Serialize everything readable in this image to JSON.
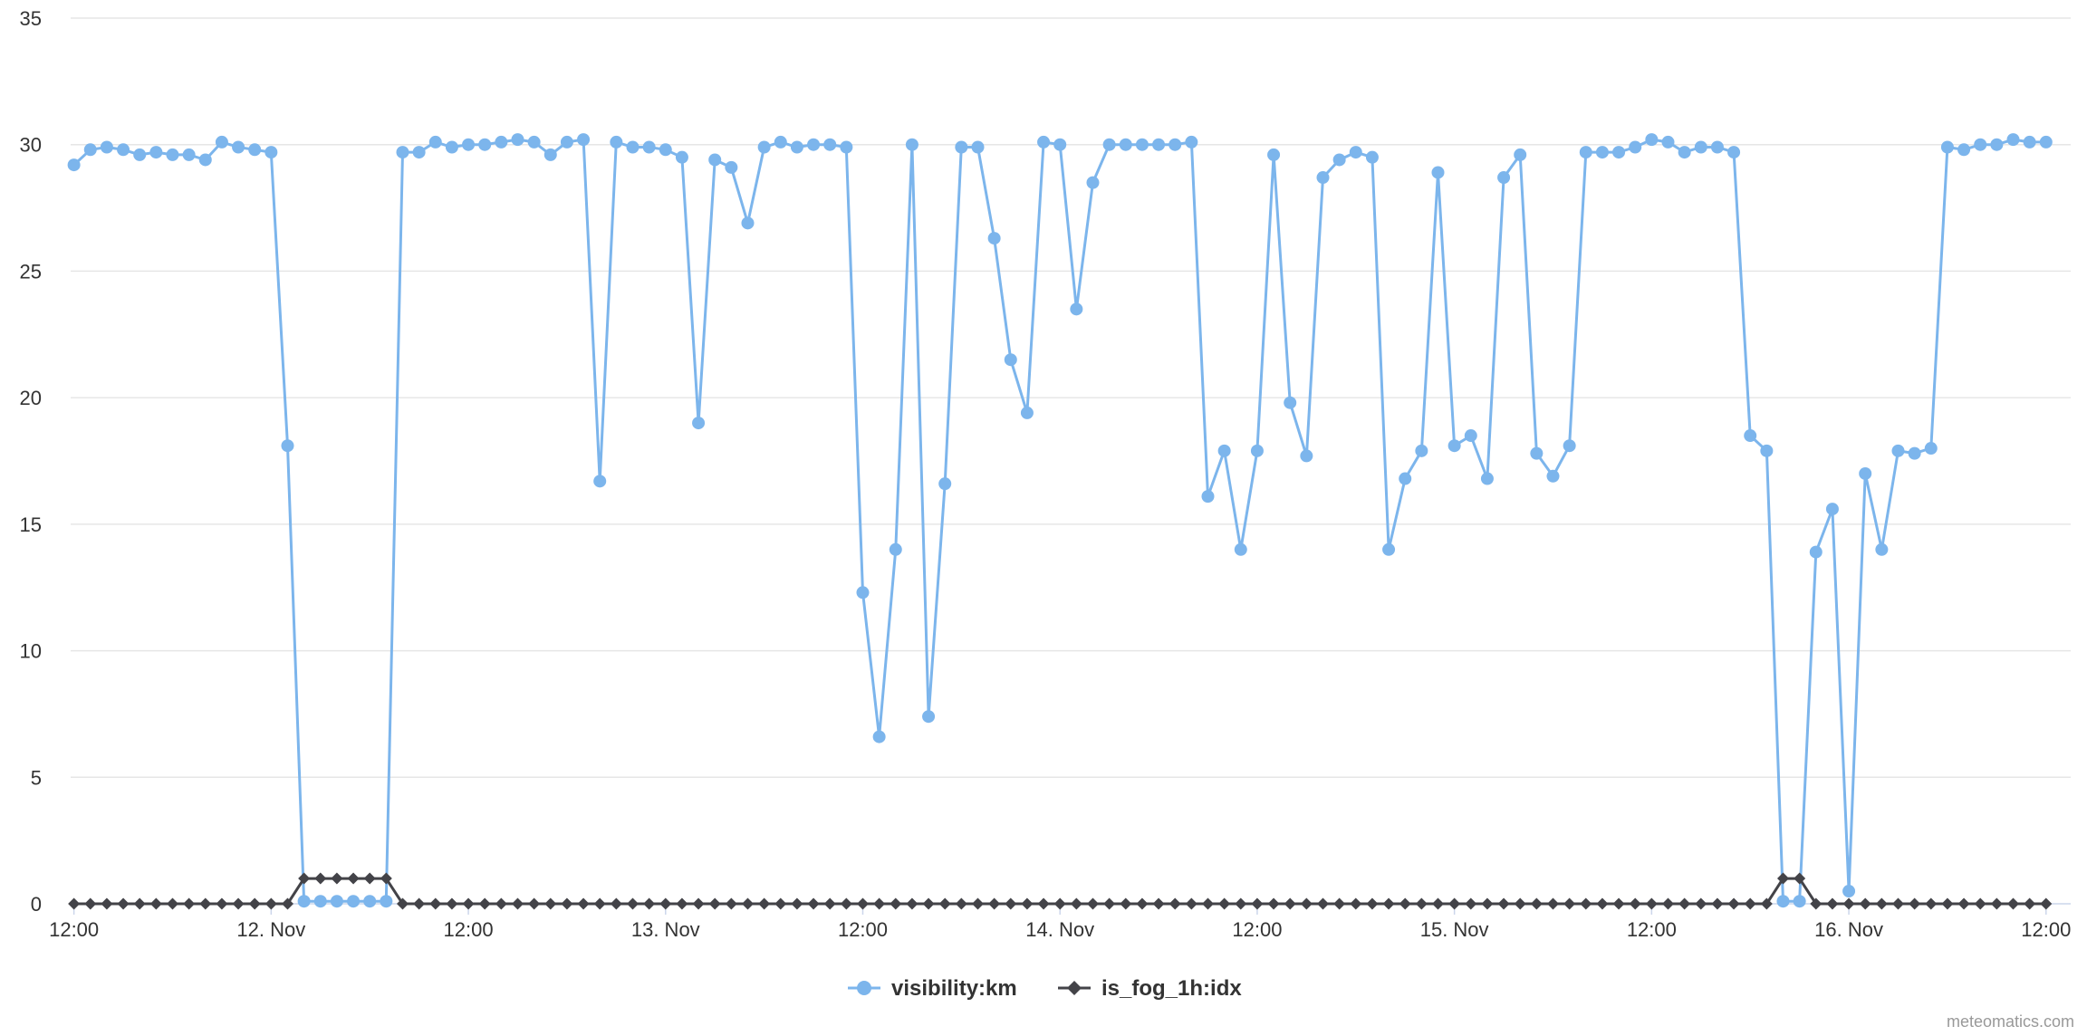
{
  "chart_data": {
    "type": "line",
    "title": "",
    "xlabel": "",
    "ylabel": "",
    "ylim": [
      0,
      35
    ],
    "yticks": [
      0,
      5,
      10,
      15,
      20,
      25,
      30,
      35
    ],
    "x": {
      "start": "11 Nov 12:00",
      "step_hours": 1,
      "range_hours": [
        -0.2,
        121.5
      ],
      "ticks": [
        {
          "hours": 0,
          "label": "12:00"
        },
        {
          "hours": 12,
          "label": "12. Nov"
        },
        {
          "hours": 24,
          "label": "12:00"
        },
        {
          "hours": 36,
          "label": "13. Nov"
        },
        {
          "hours": 48,
          "label": "12:00"
        },
        {
          "hours": 60,
          "label": "14. Nov"
        },
        {
          "hours": 72,
          "label": "12:00"
        },
        {
          "hours": 84,
          "label": "15. Nov"
        },
        {
          "hours": 96,
          "label": "12:00"
        },
        {
          "hours": 108,
          "label": "16. Nov"
        },
        {
          "hours": 120,
          "label": "12:00"
        }
      ]
    },
    "grid": true,
    "legend_position": "bottom-center",
    "series": [
      {
        "name": "visibility:km",
        "color": "#7cb5ec",
        "marker": "circle",
        "values": [
          29.2,
          29.8,
          29.9,
          29.8,
          29.6,
          29.7,
          29.6,
          29.6,
          29.4,
          30.1,
          29.9,
          29.8,
          29.7,
          18.1,
          0.1,
          0.1,
          0.1,
          0.1,
          0.1,
          0.1,
          29.7,
          29.7,
          30.1,
          29.9,
          30.0,
          30.0,
          30.1,
          30.2,
          30.1,
          29.6,
          30.1,
          30.2,
          16.7,
          30.1,
          29.9,
          29.9,
          29.8,
          29.5,
          19.0,
          29.4,
          29.1,
          26.9,
          29.9,
          30.1,
          29.9,
          30.0,
          30.0,
          29.9,
          12.3,
          6.6,
          14.0,
          30.0,
          7.4,
          16.6,
          29.9,
          29.9,
          26.3,
          21.5,
          19.4,
          30.1,
          30.0,
          23.5,
          28.5,
          30.0,
          30.0,
          30.0,
          30.0,
          30.0,
          30.1,
          16.1,
          17.9,
          14.0,
          17.9,
          29.6,
          19.8,
          17.7,
          28.7,
          29.4,
          29.7,
          29.5,
          14.0,
          16.8,
          17.9,
          28.9,
          18.1,
          18.5,
          16.8,
          28.7,
          29.6,
          17.8,
          16.9,
          18.1,
          29.7,
          29.7,
          29.7,
          29.9,
          30.2,
          30.1,
          29.7,
          29.9,
          29.9,
          29.7,
          18.5,
          17.9,
          0.1,
          0.1,
          13.9,
          15.6,
          0.5,
          17.0,
          14.0,
          17.9,
          17.8,
          18.0,
          29.9,
          29.8,
          30.0,
          30.0,
          30.2,
          30.1,
          30.1
        ]
      },
      {
        "name": "is_fog_1h:idx",
        "color": "#434348",
        "marker": "diamond",
        "values": [
          0,
          0,
          0,
          0,
          0,
          0,
          0,
          0,
          0,
          0,
          0,
          0,
          0,
          0,
          1,
          1,
          1,
          1,
          1,
          1,
          0,
          0,
          0,
          0,
          0,
          0,
          0,
          0,
          0,
          0,
          0,
          0,
          0,
          0,
          0,
          0,
          0,
          0,
          0,
          0,
          0,
          0,
          0,
          0,
          0,
          0,
          0,
          0,
          0,
          0,
          0,
          0,
          0,
          0,
          0,
          0,
          0,
          0,
          0,
          0,
          0,
          0,
          0,
          0,
          0,
          0,
          0,
          0,
          0,
          0,
          0,
          0,
          0,
          0,
          0,
          0,
          0,
          0,
          0,
          0,
          0,
          0,
          0,
          0,
          0,
          0,
          0,
          0,
          0,
          0,
          0,
          0,
          0,
          0,
          0,
          0,
          0,
          0,
          0,
          0,
          0,
          0,
          0,
          0,
          1,
          1,
          0,
          0,
          0,
          0,
          0,
          0,
          0,
          0,
          0,
          0,
          0,
          0,
          0,
          0,
          0
        ]
      }
    ]
  },
  "credit": "meteomatics.com",
  "colors": {
    "grid": "#e6e6e6",
    "axis_line": "#ccd6eb",
    "text": "#333333"
  }
}
